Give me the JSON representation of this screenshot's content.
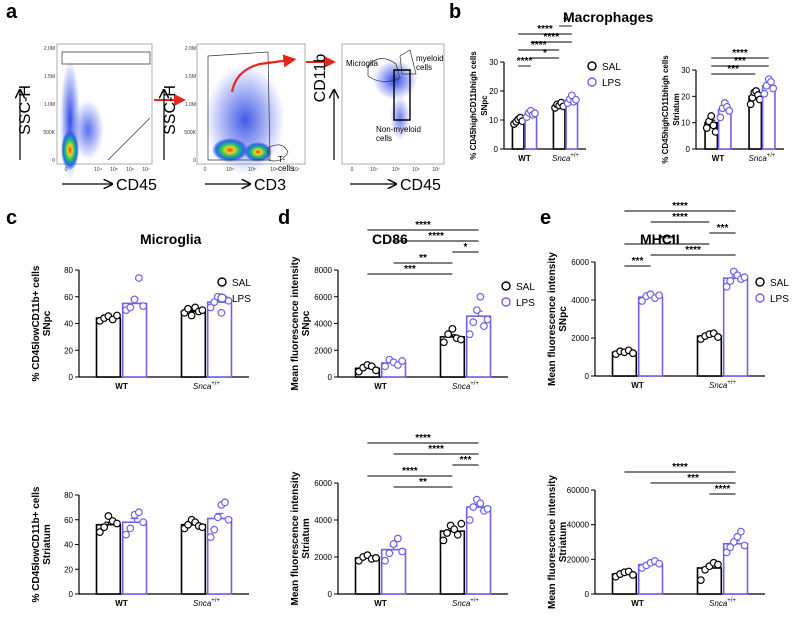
{
  "panel_labels": {
    "a": "a",
    "b": "b",
    "c": "c",
    "d": "d",
    "e": "e"
  },
  "colors": {
    "sal": "#000000",
    "lps": "#6b63e8",
    "arrow": "#e8251c",
    "dots": "#2a3ad8"
  },
  "flow_panel": {
    "plot1": {
      "ylabel": "SSC-H",
      "xlabel": "CD45",
      "yticks": [
        "2.0M",
        "1.5M",
        "1.0M",
        "500K",
        "0"
      ],
      "xticks": [
        "0",
        "10⁴",
        "10⁵",
        "10⁶",
        "10⁷"
      ]
    },
    "plot2": {
      "ylabel": "SSC-H",
      "xlabel": "CD3",
      "yticks": [
        "2.0M",
        "1.5M",
        "1.0M",
        "500K",
        "0"
      ],
      "xticks": [
        "0",
        "10⁴",
        "10⁵",
        "10⁶",
        "10⁷"
      ],
      "gate_label": "T-\ncells"
    },
    "plot3": {
      "ylabel": "CD11b",
      "xlabel": "CD45",
      "yticks": [
        "",
        "",
        "",
        "",
        ""
      ],
      "xticks": [
        "0",
        "10⁴",
        "10⁵",
        "10⁶",
        "10⁷"
      ],
      "gates": [
        "Microglia",
        "myeloid\ncells",
        "Non-myeloid\ncells"
      ]
    }
  },
  "chart_data": [
    {
      "id": "b1",
      "panel": "b",
      "type": "bar",
      "title": "Macrophages",
      "ylabel": "% CD45highCD11bhigh cells SNpc",
      "categories": [
        "WT",
        "Snca+/+"
      ],
      "ylim": [
        0,
        30
      ],
      "yticks": [
        0,
        10,
        20,
        30
      ],
      "series": [
        {
          "name": "SAL",
          "values": [
            9.5,
            15
          ]
        },
        {
          "name": "LPS",
          "values": [
            12,
            17
          ]
        }
      ],
      "points": {
        "SAL": [
          [
            8.6,
            9.4,
            10.2,
            10.8,
            9.6
          ],
          [
            14.2,
            15.4,
            15.0,
            16.0,
            14.7
          ]
        ],
        "LPS": [
          [
            11.0,
            12.5,
            13.2,
            11.8,
            12.3
          ],
          [
            15.8,
            17.2,
            18.5,
            16.3,
            17.0
          ]
        ]
      },
      "sig": [
        {
          "a": 0,
          "b": 1,
          "t": "****"
        },
        {
          "a": 1,
          "b": 2,
          "t": "*"
        },
        {
          "a": 0,
          "b": 2,
          "t": "****"
        },
        {
          "a": 1,
          "b": 3,
          "t": "****"
        },
        {
          "a": 0,
          "b": 3,
          "t": "****"
        },
        {
          "a": 2,
          "b": 3,
          "t": "*"
        }
      ],
      "legend": [
        "SAL",
        "LPS"
      ]
    },
    {
      "id": "b2",
      "panel": "b",
      "type": "bar",
      "title": "",
      "ylabel": "% CD45highCD11bhigh cells Striatum",
      "categories": [
        "WT",
        "Snca+/+"
      ],
      "ylim": [
        0,
        30
      ],
      "yticks": [
        0,
        10,
        20,
        30
      ],
      "series": [
        {
          "name": "SAL",
          "values": [
            10,
            20
          ]
        },
        {
          "name": "LPS",
          "values": [
            15,
            24
          ]
        }
      ],
      "points": {
        "SAL": [
          [
            8.0,
            10.5,
            12.5,
            9.0,
            6.5
          ],
          [
            17.0,
            19.5,
            21.5,
            22.0,
            20.5,
            18.8
          ]
        ],
        "LPS": [
          [
            12.0,
            15.5,
            17.5,
            16.0,
            14.5
          ],
          [
            21.0,
            24.0,
            26.5,
            25.5,
            23.0
          ]
        ]
      },
      "sig": [
        {
          "a": 0,
          "b": 2,
          "t": "***"
        },
        {
          "a": 0,
          "b": 3,
          "t": "***"
        },
        {
          "a": 0,
          "b": 3,
          "t": "****"
        }
      ],
      "legend": []
    },
    {
      "id": "c1",
      "panel": "c",
      "type": "bar",
      "title": "Microglia",
      "ylabel": "% CD45lowCD11b+ cells SNpc",
      "categories": [
        "WT",
        "Snca+/+"
      ],
      "ylim": [
        0,
        80
      ],
      "yticks": [
        0,
        20,
        40,
        60,
        80
      ],
      "series": [
        {
          "name": "SAL",
          "values": [
            44,
            49
          ]
        },
        {
          "name": "LPS",
          "values": [
            55,
            56
          ]
        }
      ],
      "points": {
        "SAL": [
          [
            42,
            44,
            45.5,
            43,
            46
          ],
          [
            48,
            51,
            46,
            52,
            49,
            50
          ]
        ],
        "LPS": [
          [
            50,
            52,
            58,
            74,
            53
          ],
          [
            52,
            56,
            60,
            48,
            58,
            57
          ]
        ]
      },
      "sig": [],
      "legend": [
        "SAL",
        "LPS"
      ]
    },
    {
      "id": "c2",
      "panel": "c",
      "type": "bar",
      "title": "",
      "ylabel": "% CD45lowCD11b+ cells Striatum",
      "categories": [
        "WT",
        "Snca+/+"
      ],
      "ylim": [
        0,
        80
      ],
      "yticks": [
        0,
        20,
        40,
        60,
        80
      ],
      "series": [
        {
          "name": "SAL",
          "values": [
            56,
            56
          ]
        },
        {
          "name": "LPS",
          "values": [
            58,
            61
          ]
        }
      ],
      "points": {
        "SAL": [
          [
            50,
            54,
            63,
            59,
            57
          ],
          [
            53,
            56,
            60,
            58,
            55,
            54
          ]
        ],
        "LPS": [
          [
            48,
            53,
            64,
            66,
            58
          ],
          [
            46,
            52,
            62,
            72,
            74,
            60
          ]
        ]
      },
      "sig": [],
      "legend": []
    },
    {
      "id": "d1",
      "panel": "d",
      "type": "bar",
      "title": "CD86",
      "ylabel": "Mean fluorescence intensity SNpc",
      "categories": [
        "WT",
        "Snca+/+"
      ],
      "ylim": [
        0,
        8000
      ],
      "yticks": [
        0,
        2000,
        4000,
        6000,
        8000
      ],
      "series": [
        {
          "name": "SAL",
          "values": [
            650,
            3000
          ]
        },
        {
          "name": "LPS",
          "values": [
            1050,
            4550
          ]
        }
      ],
      "points": {
        "SAL": [
          [
            400,
            700,
            900,
            800,
            500
          ],
          [
            2600,
            3200,
            3600,
            2900,
            2800
          ]
        ],
        "LPS": [
          [
            800,
            1300,
            1100,
            900,
            1200
          ],
          [
            3200,
            4100,
            5000,
            6000,
            3800,
            4300
          ]
        ]
      },
      "sig": [
        {
          "a": 0,
          "b": 2,
          "t": "***"
        },
        {
          "a": 1,
          "b": 2,
          "t": "**"
        },
        {
          "a": 2,
          "b": 3,
          "t": "*"
        },
        {
          "a": 1,
          "b": 3,
          "t": "****"
        },
        {
          "a": 0,
          "b": 3,
          "t": "****"
        }
      ],
      "legend": [
        "SAL",
        "LPS"
      ]
    },
    {
      "id": "d2",
      "panel": "d",
      "type": "bar",
      "title": "",
      "ylabel": "Mean fluorescence intensity Striatum",
      "categories": [
        "WT",
        "Snca+/+"
      ],
      "ylim": [
        0,
        6000
      ],
      "yticks": [
        0,
        2000,
        4000,
        6000
      ],
      "series": [
        {
          "name": "SAL",
          "values": [
            1950,
            3400
          ]
        },
        {
          "name": "LPS",
          "values": [
            2400,
            4700
          ]
        }
      ],
      "points": {
        "SAL": [
          [
            1800,
            2000,
            2100,
            1900,
            1950
          ],
          [
            2900,
            3300,
            3700,
            3500,
            3200,
            3800
          ]
        ],
        "LPS": [
          [
            1800,
            2200,
            2700,
            3000,
            2300
          ],
          [
            4000,
            4700,
            5100,
            4900,
            4500,
            4600
          ]
        ]
      },
      "sig": [
        {
          "a": 1,
          "b": 2,
          "t": "**"
        },
        {
          "a": 0,
          "b": 2,
          "t": "****"
        },
        {
          "a": 2,
          "b": 3,
          "t": "***"
        },
        {
          "a": 1,
          "b": 3,
          "t": "****"
        },
        {
          "a": 0,
          "b": 3,
          "t": "****"
        }
      ],
      "legend": []
    },
    {
      "id": "e1",
      "panel": "e",
      "type": "bar",
      "title": "MHCII",
      "ylabel": "Mean fluorescence intensity SNpc",
      "categories": [
        "WT",
        "Snca+/+"
      ],
      "ylim": [
        0,
        6000
      ],
      "yticks": [
        0,
        2000,
        4000,
        6000
      ],
      "series": [
        {
          "name": "SAL",
          "values": [
            1250,
            2100
          ]
        },
        {
          "name": "LPS",
          "values": [
            4150,
            5150
          ]
        }
      ],
      "points": {
        "SAL": [
          [
            1150,
            1300,
            1250,
            1350,
            1200
          ],
          [
            1950,
            2100,
            2200,
            2250,
            2050
          ]
        ],
        "LPS": [
          [
            3950,
            4200,
            4300,
            4100,
            4250
          ],
          [
            4700,
            5000,
            5500,
            5300,
            5100,
            5200
          ]
        ]
      },
      "sig": [
        {
          "a": 0,
          "b": 1,
          "t": "***"
        },
        {
          "a": 1,
          "b": 3,
          "t": "****"
        },
        {
          "a": 0,
          "b": 2,
          "t": "****"
        },
        {
          "a": 2,
          "b": 3,
          "t": "***"
        },
        {
          "a": 1,
          "b": 2,
          "t": "****"
        },
        {
          "a": 0,
          "b": 3,
          "t": "****"
        }
      ],
      "legend": [
        "SAL",
        "LPS"
      ]
    },
    {
      "id": "e2",
      "panel": "e",
      "type": "bar",
      "title": "",
      "ylabel": "Mean fluorescence intensity Striatum",
      "categories": [
        "WT",
        "Snca+/+"
      ],
      "ylim": [
        0,
        60000
      ],
      "yticks": [
        0,
        20000,
        40000,
        60000
      ],
      "series": [
        {
          "name": "SAL",
          "values": [
            11500,
            15000
          ]
        },
        {
          "name": "LPS",
          "values": [
            17000,
            29000
          ]
        }
      ],
      "points": {
        "SAL": [
          [
            10000,
            11500,
            12500,
            13000,
            11000
          ],
          [
            8000,
            14000,
            16000,
            18000,
            17000
          ]
        ],
        "LPS": [
          [
            15000,
            16500,
            18000,
            19000,
            17500
          ],
          [
            24000,
            27000,
            30000,
            33000,
            36000,
            28000
          ]
        ]
      },
      "sig": [
        {
          "a": 2,
          "b": 3,
          "t": "****"
        },
        {
          "a": 1,
          "b": 3,
          "t": "***"
        },
        {
          "a": 0,
          "b": 3,
          "t": "****"
        }
      ],
      "legend": []
    }
  ]
}
